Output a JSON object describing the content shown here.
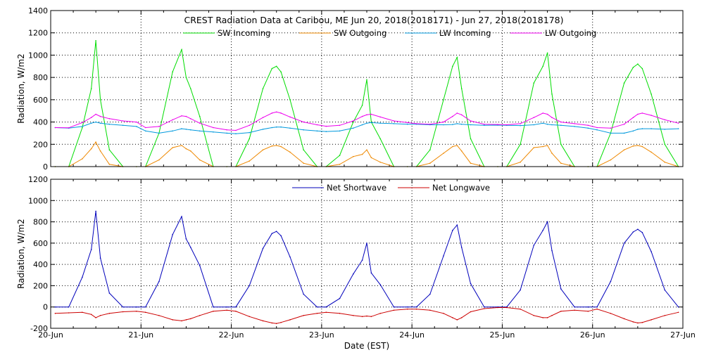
{
  "chart_data": [
    {
      "type": "line",
      "title": "CREST Radiation Data at Caribou, ME   Jun 20, 2018(2018171) - Jun 27, 2018(2018178)",
      "ylabel": "Radiation, W/m2",
      "xlim": [
        0,
        7
      ],
      "ylim": [
        0,
        1400
      ],
      "yticks": [
        0,
        200,
        400,
        600,
        800,
        1000,
        1200,
        1400
      ],
      "grid": true,
      "legend_position": "top-center",
      "sample_x": [
        0.05,
        0.2,
        0.35,
        0.45,
        0.5,
        0.55,
        0.65,
        0.8,
        0.95,
        1.05,
        1.2,
        1.35,
        1.45,
        1.5,
        1.55,
        1.65,
        1.8,
        1.95,
        2.05,
        2.2,
        2.35,
        2.45,
        2.5,
        2.55,
        2.65,
        2.8,
        2.95,
        3.05,
        3.2,
        3.35,
        3.45,
        3.5,
        3.55,
        3.65,
        3.8,
        3.95,
        4.05,
        4.2,
        4.35,
        4.45,
        4.5,
        4.55,
        4.65,
        4.8,
        4.95,
        5.05,
        5.2,
        5.35,
        5.45,
        5.5,
        5.55,
        5.65,
        5.8,
        5.95,
        6.05,
        6.2,
        6.35,
        6.45,
        6.5,
        6.55,
        6.65,
        6.8,
        6.95
      ],
      "series": [
        {
          "name": "SW Incoming",
          "color": "#00dd00",
          "values": [
            0,
            0,
            350,
            700,
            1130,
            600,
            150,
            0,
            0,
            0,
            300,
            850,
            1050,
            800,
            700,
            450,
            0,
            0,
            0,
            250,
            700,
            880,
            900,
            850,
            600,
            150,
            0,
            0,
            100,
            400,
            550,
            780,
            400,
            250,
            0,
            0,
            0,
            150,
            600,
            900,
            980,
            700,
            250,
            0,
            0,
            0,
            200,
            750,
            900,
            1020,
            650,
            200,
            0,
            0,
            0,
            300,
            750,
            890,
            920,
            880,
            650,
            200,
            0
          ]
        },
        {
          "name": "SW Outgoing",
          "color": "#ee8800",
          "values": [
            0,
            0,
            70,
            160,
            220,
            140,
            20,
            0,
            0,
            0,
            60,
            170,
            190,
            160,
            140,
            60,
            0,
            0,
            0,
            50,
            150,
            185,
            190,
            180,
            130,
            30,
            0,
            0,
            20,
            90,
            110,
            150,
            80,
            40,
            0,
            0,
            0,
            30,
            120,
            180,
            190,
            140,
            30,
            0,
            0,
            0,
            40,
            170,
            180,
            190,
            120,
            30,
            0,
            0,
            0,
            60,
            150,
            185,
            190,
            180,
            130,
            40,
            0
          ]
        },
        {
          "name": "LW Incoming",
          "color": "#0099dd",
          "values": [
            350,
            345,
            360,
            390,
            400,
            390,
            380,
            370,
            360,
            320,
            300,
            320,
            340,
            335,
            330,
            320,
            310,
            300,
            295,
            305,
            335,
            350,
            355,
            355,
            345,
            330,
            320,
            315,
            320,
            345,
            375,
            390,
            395,
            390,
            385,
            380,
            380,
            375,
            375,
            378,
            385,
            380,
            375,
            370,
            372,
            370,
            368,
            375,
            390,
            380,
            375,
            370,
            360,
            345,
            330,
            300,
            300,
            320,
            335,
            340,
            340,
            335,
            340
          ]
        },
        {
          "name": "LW Outgoing",
          "color": "#ee00ee",
          "values": [
            350,
            348,
            395,
            440,
            470,
            450,
            430,
            410,
            400,
            350,
            360,
            420,
            455,
            450,
            430,
            390,
            350,
            330,
            325,
            370,
            440,
            480,
            490,
            480,
            445,
            400,
            375,
            362,
            370,
            410,
            450,
            465,
            470,
            445,
            410,
            395,
            385,
            380,
            400,
            450,
            480,
            465,
            410,
            380,
            378,
            375,
            385,
            440,
            480,
            470,
            440,
            400,
            385,
            370,
            350,
            345,
            380,
            440,
            470,
            480,
            460,
            420,
            390
          ]
        }
      ]
    },
    {
      "type": "line",
      "xlabel": "Date (EST)",
      "ylabel": "Radiation, W/m2",
      "xlim": [
        0,
        7
      ],
      "ylim": [
        -200,
        1200
      ],
      "yticks": [
        -200,
        0,
        200,
        400,
        600,
        800,
        1000,
        1200
      ],
      "x_tick_labels": [
        "20-Jun",
        "21-Jun",
        "22-Jun",
        "23-Jun",
        "24-Jun",
        "25-Jun",
        "26-Jun",
        "27-Jun"
      ],
      "grid": true,
      "legend_position": "top-center",
      "sample_x": [
        0.05,
        0.2,
        0.35,
        0.45,
        0.5,
        0.55,
        0.65,
        0.8,
        0.95,
        1.05,
        1.2,
        1.35,
        1.45,
        1.5,
        1.55,
        1.65,
        1.8,
        1.95,
        2.05,
        2.2,
        2.35,
        2.45,
        2.5,
        2.55,
        2.65,
        2.8,
        2.95,
        3.05,
        3.2,
        3.35,
        3.45,
        3.5,
        3.55,
        3.65,
        3.8,
        3.95,
        4.05,
        4.2,
        4.35,
        4.45,
        4.5,
        4.55,
        4.65,
        4.8,
        4.95,
        5.05,
        5.2,
        5.35,
        5.45,
        5.5,
        5.55,
        5.65,
        5.8,
        5.95,
        6.05,
        6.2,
        6.35,
        6.45,
        6.5,
        6.55,
        6.65,
        6.8,
        6.95
      ],
      "series": [
        {
          "name": "Net Shortwave",
          "color": "#0000bb",
          "values": [
            0,
            0,
            280,
            540,
            900,
            460,
            130,
            0,
            0,
            0,
            240,
            680,
            850,
            640,
            560,
            390,
            0,
            0,
            0,
            200,
            550,
            690,
            710,
            670,
            470,
            120,
            0,
            0,
            80,
            310,
            440,
            600,
            320,
            210,
            0,
            0,
            0,
            120,
            480,
            720,
            770,
            560,
            220,
            0,
            0,
            0,
            160,
            580,
            720,
            800,
            530,
            170,
            0,
            0,
            0,
            240,
            600,
            705,
            730,
            700,
            520,
            160,
            0
          ]
        },
        {
          "name": "Net Longwave",
          "color": "#cc0000",
          "values": [
            -60,
            -55,
            -50,
            -70,
            -100,
            -80,
            -60,
            -45,
            -40,
            -50,
            -80,
            -120,
            -130,
            -120,
            -110,
            -80,
            -40,
            -30,
            -40,
            -90,
            -130,
            -150,
            -155,
            -145,
            -120,
            -80,
            -60,
            -50,
            -60,
            -80,
            -90,
            -85,
            -90,
            -60,
            -30,
            -20,
            -20,
            -30,
            -60,
            -100,
            -120,
            -100,
            -45,
            -15,
            -5,
            -5,
            -20,
            -80,
            -100,
            -100,
            -80,
            -40,
            -30,
            -40,
            -20,
            -60,
            -110,
            -140,
            -150,
            -145,
            -120,
            -80,
            -50
          ]
        }
      ]
    }
  ]
}
